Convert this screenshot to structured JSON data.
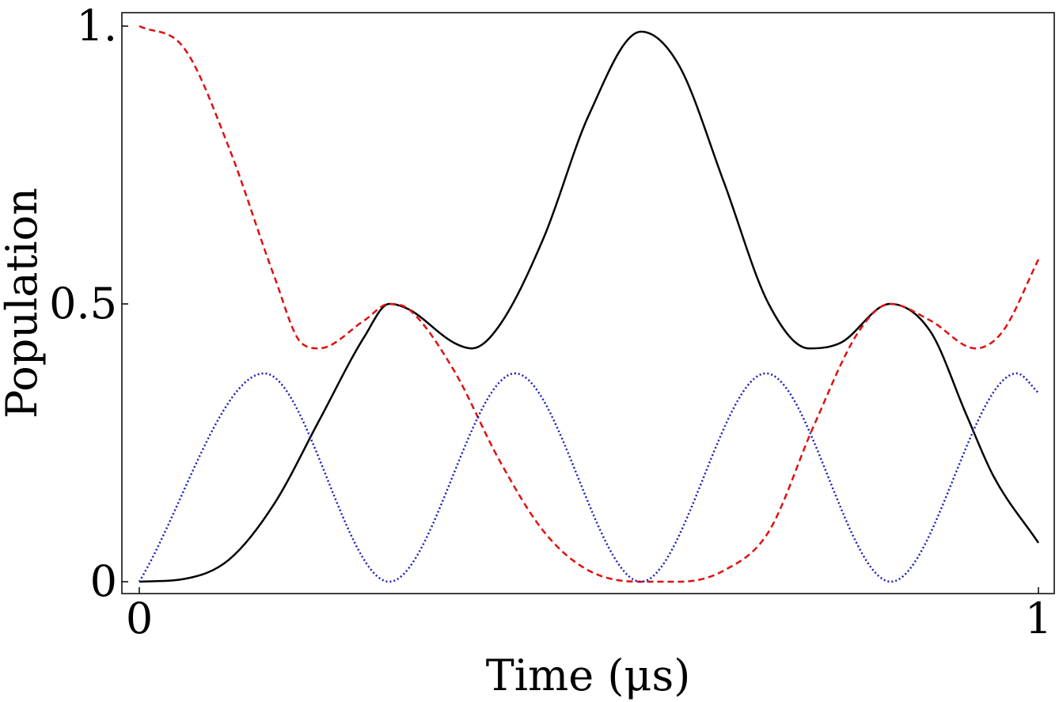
{
  "chart_data": {
    "type": "line",
    "xlabel": "Time (μs)",
    "ylabel": "Population",
    "xlim": [
      0,
      1
    ],
    "ylim": [
      0,
      1
    ],
    "x_ticks": [
      {
        "value": 0,
        "label": "0"
      },
      {
        "value": 1,
        "label": "1"
      }
    ],
    "y_ticks": [
      {
        "value": 0,
        "label": "0"
      },
      {
        "value": 0.5,
        "label": "0.5"
      },
      {
        "value": 1,
        "label": "1."
      }
    ],
    "grid": false,
    "series": [
      {
        "color": "#000000",
        "style": "solid",
        "x": [
          0,
          0.05,
          0.1,
          0.15,
          0.2,
          0.25,
          0.278,
          0.3,
          0.35,
          0.37,
          0.4,
          0.45,
          0.5,
          0.558,
          0.6,
          0.65,
          0.7,
          0.745,
          0.78,
          0.835,
          0.88,
          0.92,
          0.95,
          1.0
        ],
        "y": [
          0,
          0.005,
          0.04,
          0.14,
          0.29,
          0.44,
          0.5,
          0.49,
          0.43,
          0.42,
          0.46,
          0.62,
          0.84,
          0.99,
          0.93,
          0.72,
          0.5,
          0.42,
          0.43,
          0.5,
          0.45,
          0.3,
          0.19,
          0.07
        ]
      },
      {
        "color": "#e01010",
        "style": "dashed",
        "x": [
          0,
          0.05,
          0.1,
          0.15,
          0.18,
          0.2,
          0.25,
          0.278,
          0.3,
          0.35,
          0.4,
          0.45,
          0.5,
          0.558,
          0.6,
          0.65,
          0.7,
          0.75,
          0.8,
          0.835,
          0.88,
          0.93,
          0.96,
          1.0
        ],
        "y": [
          1.0,
          0.96,
          0.78,
          0.55,
          0.43,
          0.42,
          0.47,
          0.5,
          0.49,
          0.38,
          0.22,
          0.09,
          0.02,
          0.0,
          0.0,
          0.02,
          0.09,
          0.28,
          0.45,
          0.5,
          0.47,
          0.42,
          0.45,
          0.58
        ]
      },
      {
        "color": "#1a1ac0",
        "style": "dotted",
        "x": [
          0,
          0.139,
          0.278,
          0.418,
          0.558,
          0.697,
          0.836,
          0.976,
          1.0
        ],
        "y": [
          0,
          0.375,
          0,
          0.375,
          0,
          0.375,
          0,
          0.375,
          0.34
        ]
      }
    ]
  }
}
